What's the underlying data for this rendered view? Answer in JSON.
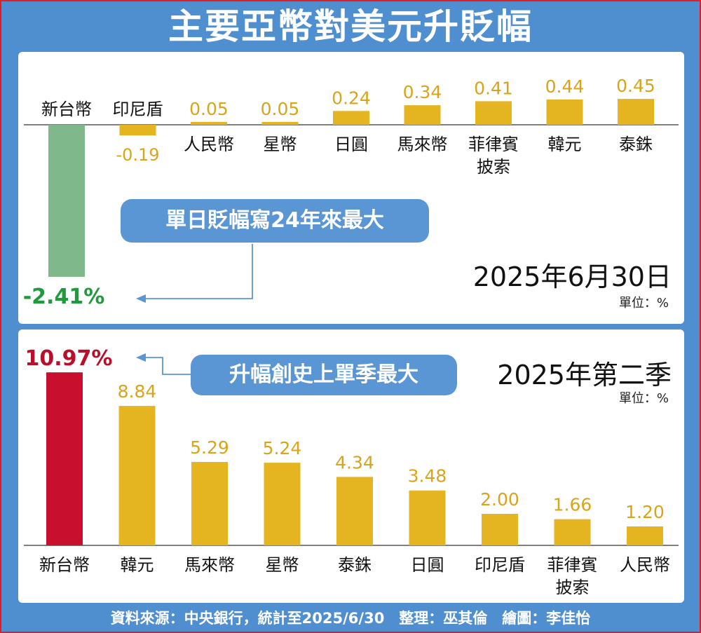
{
  "title": "主要亞幣對美元升貶幅",
  "footer": "資料來源：中央銀行，統計至2025/6/30　整理：巫其倫　繪圖：李佳怡",
  "colors": {
    "background_blue": "#4f8fd0",
    "highlight_green": "#7fb88b",
    "highlight_red": "#c8102e",
    "bar_gold": "#e4b520",
    "label_gold": "#d9a41a",
    "green_text": "#1f9a3c",
    "red_text": "#b8102a",
    "callout_blue": "#5a96d3",
    "arrow_blue": "#5a96d3",
    "frame_red": "#e21d24"
  },
  "chart_data": [
    {
      "type": "bar",
      "title": "2025年6月30日",
      "unit_label": "單位：%",
      "callout": "單日貶幅寫24年來最大",
      "categories": [
        "新台幣",
        "印尼盾",
        "人民幣",
        "星幣",
        "日圓",
        "馬來幣",
        "菲律賓披索",
        "韓元",
        "泰銖"
      ],
      "category_lines": [
        [
          "新台幣"
        ],
        [
          "印尼盾"
        ],
        [
          "人民幣"
        ],
        [
          "星幣"
        ],
        [
          "日圓"
        ],
        [
          "馬來幣"
        ],
        [
          "菲律賓",
          "披索"
        ],
        [
          "韓元"
        ],
        [
          "泰銖"
        ]
      ],
      "values": [
        -2.41,
        -0.19,
        0.05,
        0.05,
        0.24,
        0.34,
        0.41,
        0.44,
        0.45
      ],
      "value_labels": [
        "-2.41%",
        "-0.19",
        "0.05",
        "0.05",
        "0.24",
        "0.34",
        "0.41",
        "0.44",
        "0.45"
      ],
      "highlight_index": 0
    },
    {
      "type": "bar",
      "title": "2025年第二季",
      "unit_label": "單位：%",
      "callout": "升幅創史上單季最大",
      "categories": [
        "新台幣",
        "韓元",
        "馬來幣",
        "星幣",
        "泰銖",
        "日圓",
        "印尼盾",
        "菲律賓披索",
        "人民幣"
      ],
      "category_lines": [
        [
          "新台幣"
        ],
        [
          "韓元"
        ],
        [
          "馬來幣"
        ],
        [
          "星幣"
        ],
        [
          "泰銖"
        ],
        [
          "日圓"
        ],
        [
          "印尼盾"
        ],
        [
          "菲律賓",
          "披索"
        ],
        [
          "人民幣"
        ]
      ],
      "values": [
        10.97,
        8.84,
        5.29,
        5.24,
        4.34,
        3.48,
        2.0,
        1.66,
        1.2
      ],
      "value_labels": [
        "10.97%",
        "8.84",
        "5.29",
        "5.24",
        "4.34",
        "3.48",
        "2.00",
        "1.66",
        "1.20"
      ],
      "highlight_index": 0
    }
  ]
}
